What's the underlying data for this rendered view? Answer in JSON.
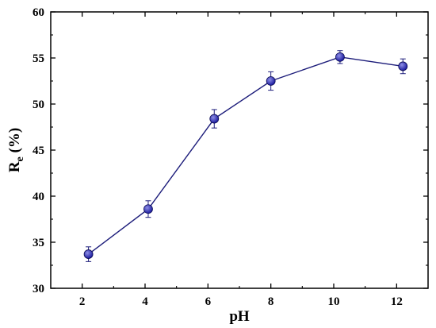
{
  "chart_data": {
    "type": "scatter",
    "title": "",
    "xlabel": "pH",
    "ylabel_main": "R",
    "ylabel_sub": "e",
    "ylabel_unit": " (%)",
    "xlim": [
      1,
      13
    ],
    "ylim": [
      30,
      60
    ],
    "xticks": [
      2,
      4,
      6,
      8,
      10,
      12
    ],
    "yticks": [
      30,
      35,
      40,
      45,
      50,
      55,
      60
    ],
    "grid": false,
    "line_connected": true,
    "marker": "circle",
    "colors": {
      "line": "#1c1c7a",
      "marker": "#1a1a9e",
      "marker_highlight": "#8f8fe6",
      "axis": "#000000"
    },
    "series": [
      {
        "x": [
          2.2,
          4.1,
          6.2,
          8.0,
          10.2,
          12.2
        ],
        "y": [
          33.7,
          38.6,
          48.4,
          52.5,
          55.1,
          54.1
        ],
        "error": [
          0.8,
          0.9,
          1.0,
          1.0,
          0.7,
          0.8
        ]
      }
    ]
  }
}
